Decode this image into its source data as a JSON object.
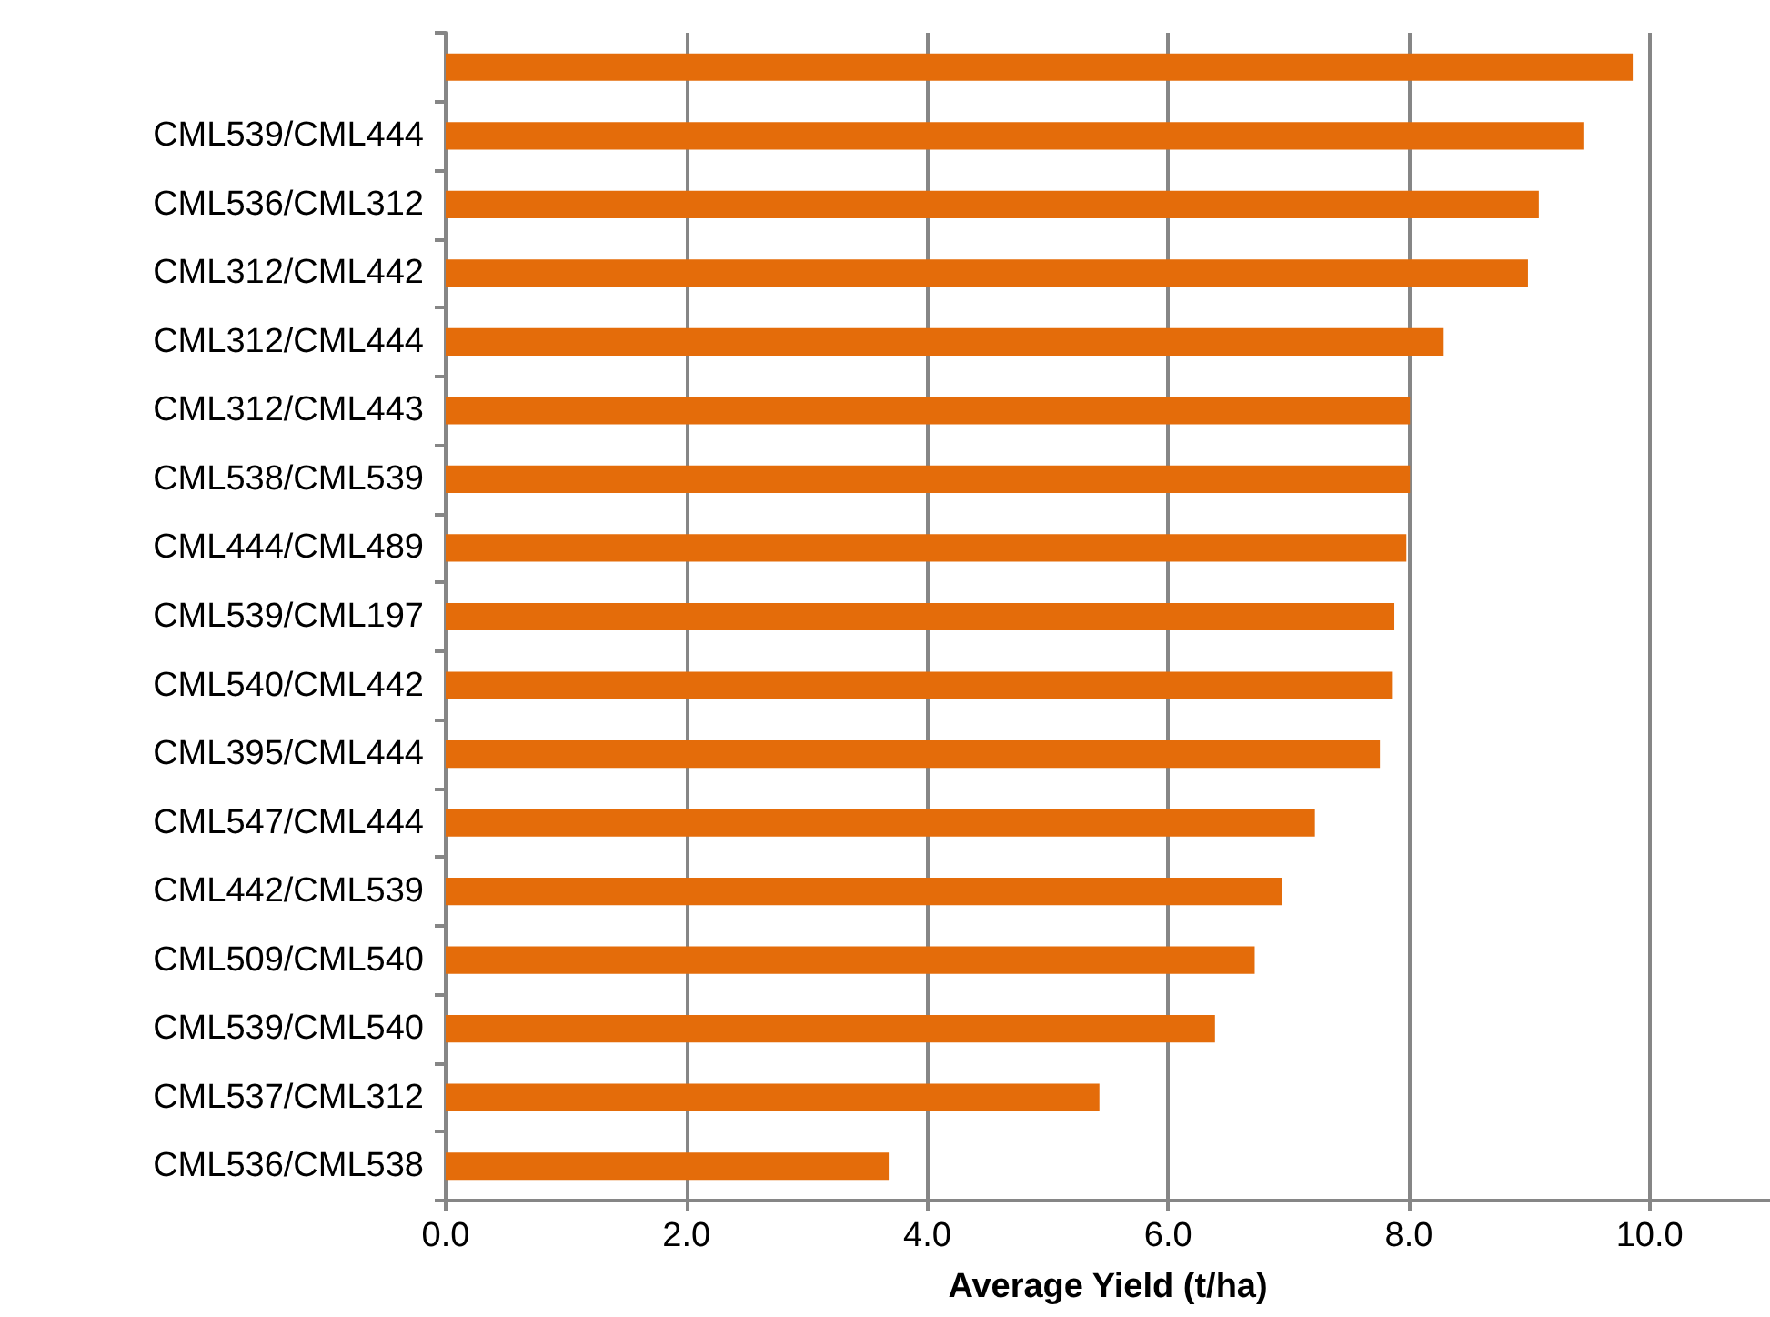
{
  "chart_data": {
    "type": "bar",
    "orientation": "horizontal",
    "xlabel": "Average Yield (t/ha)",
    "categories": [
      null,
      "CML539/CML444",
      "CML536/CML312",
      "CML312/CML442",
      "CML312/CML444",
      "CML312/CML443",
      "CML538/CML539",
      "CML444/CML489",
      "CML539/CML197",
      "CML540/CML442",
      "CML395/CML444",
      "CML547/CML444",
      "CML442/CML539",
      "CML509/CML540",
      "CML539/CML540",
      "CML537/CML312",
      "CML536/CML538"
    ],
    "values": [
      9.86,
      9.45,
      9.08,
      8.99,
      8.29,
      8.01,
      8.01,
      7.98,
      7.88,
      7.86,
      7.76,
      7.22,
      6.95,
      6.72,
      6.39,
      5.43,
      3.68
    ],
    "color": "#e46c0a",
    "xlim": [
      0,
      11
    ],
    "xticks": [
      {
        "value": 0,
        "label": "0.0"
      },
      {
        "value": 2,
        "label": "2.0"
      },
      {
        "value": 4,
        "label": "4.0"
      },
      {
        "value": 6,
        "label": "6.0"
      },
      {
        "value": 8,
        "label": "8.0"
      },
      {
        "value": 10,
        "label": "10.0"
      }
    ],
    "grid": "x"
  }
}
